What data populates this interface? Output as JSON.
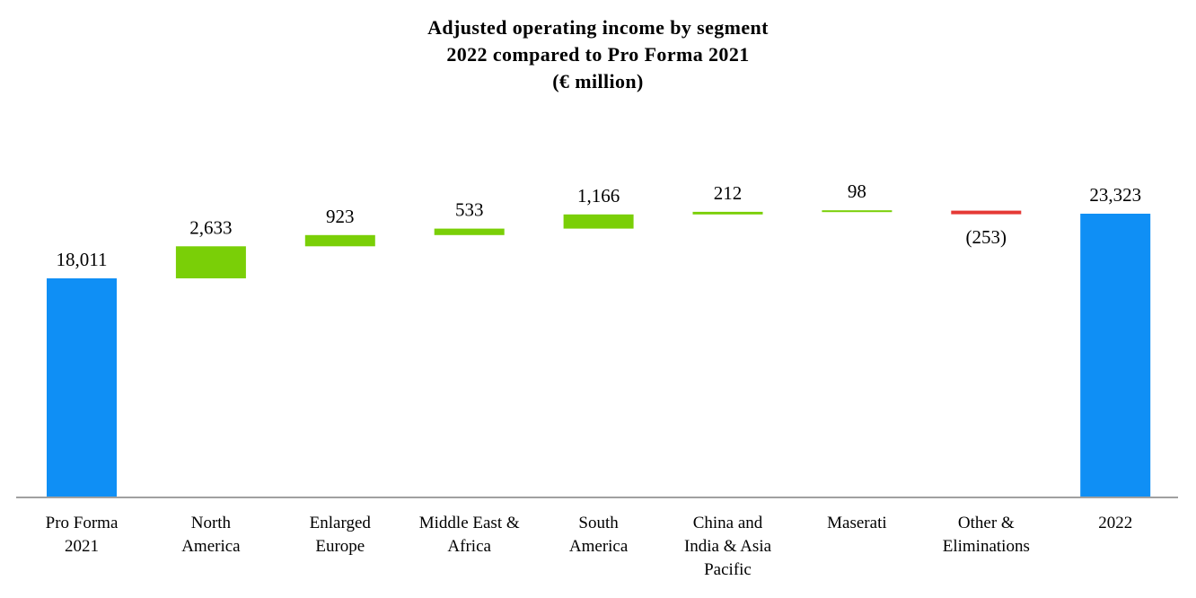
{
  "chart_data": {
    "type": "waterfall",
    "title": [
      "Adjusted operating income by segment",
      "2022 compared to Pro Forma 2021",
      "(€ million)"
    ],
    "categories": [
      [
        "Pro Forma",
        "2021"
      ],
      [
        "North",
        "America"
      ],
      [
        "Enlarged",
        "Europe"
      ],
      [
        "Middle East &",
        "Africa"
      ],
      [
        "South",
        "America"
      ],
      [
        "China and",
        "India & Asia",
        "Pacific"
      ],
      [
        "Maserati"
      ],
      [
        "Other &",
        "Eliminations"
      ],
      [
        "2022"
      ]
    ],
    "values": [
      18011,
      2633,
      923,
      533,
      1166,
      212,
      98,
      -253,
      23323
    ],
    "labels": [
      "18,011",
      "2,633",
      "923",
      "533",
      "1,166",
      "212",
      "98",
      "(253)",
      "23,323"
    ],
    "kinds": [
      "total",
      "delta",
      "delta",
      "delta",
      "delta",
      "delta",
      "delta",
      "delta",
      "total"
    ],
    "ylim": [
      0,
      23323
    ],
    "xlabel": "",
    "ylabel": "",
    "grid": false,
    "colors": {
      "total": "#0f8ff5",
      "increase": "#7acf07",
      "decrease": "#e53935",
      "axis": "#a0a0a0"
    }
  }
}
